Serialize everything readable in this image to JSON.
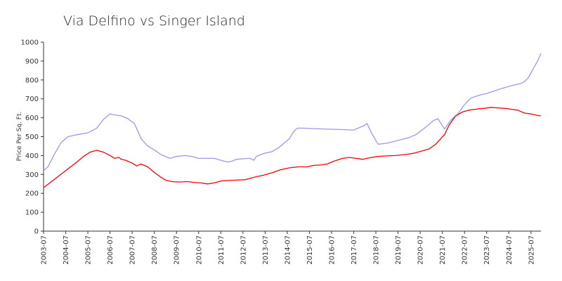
{
  "chart_data": {
    "type": "line",
    "title": "Via Delfino vs Singer Island",
    "xlabel": "",
    "ylabel": "Price Per Sq. Ft.",
    "ylim": [
      0,
      1000
    ],
    "yticks": [
      0,
      100,
      200,
      300,
      400,
      500,
      600,
      700,
      800,
      900,
      1000
    ],
    "xlim": [
      2003.5,
      2025.95
    ],
    "xticks": [
      "2003-07",
      "2004-07",
      "2005-07",
      "2006-07",
      "2007-07",
      "2008-07",
      "2009-07",
      "2010-07",
      "2011-07",
      "2012-07",
      "2013-07",
      "2014-07",
      "2015-07",
      "2016-07",
      "2017-07",
      "2018-07",
      "2019-07",
      "2020-07",
      "2021-07",
      "2022-07",
      "2023-07",
      "2024-07",
      "2025-07"
    ],
    "grid": false,
    "series": [
      {
        "color": "#9999ee",
        "x": [
          2003.5,
          2003.7,
          2004.0,
          2004.3,
          2004.6,
          2005.0,
          2005.5,
          2005.9,
          2006.2,
          2006.5,
          2006.7,
          2007.0,
          2007.3,
          2007.6,
          2007.9,
          2008.2,
          2008.5,
          2008.8,
          2009.2,
          2009.5,
          2009.9,
          2010.2,
          2010.5,
          2010.8,
          2011.2,
          2011.5,
          2011.8,
          2012.0,
          2012.2,
          2012.5,
          2012.8,
          2013.0,
          2013.1,
          2013.2,
          2013.5,
          2013.8,
          2014.1,
          2014.3,
          2014.6,
          2014.75,
          2014.9,
          2015.0,
          2015.2,
          2015.5,
          2016.0,
          2016.5,
          2017.0,
          2017.5,
          2017.8,
          2018.0,
          2018.1,
          2018.3,
          2018.6,
          2019.0,
          2019.5,
          2020.0,
          2020.3,
          2020.7,
          2021.1,
          2021.3,
          2021.6,
          2021.9,
          2022.2,
          2022.5,
          2022.8,
          2023.2,
          2023.5,
          2023.8,
          2024.1,
          2024.4,
          2024.7,
          2025.0,
          2025.2,
          2025.4,
          2025.6,
          2025.8,
          2025.95
        ],
        "y": [
          320,
          340,
          410,
          470,
          500,
          510,
          520,
          545,
          590,
          620,
          615,
          610,
          595,
          570,
          490,
          450,
          430,
          405,
          385,
          395,
          400,
          395,
          385,
          385,
          385,
          375,
          365,
          370,
          380,
          383,
          385,
          375,
          395,
          400,
          413,
          420,
          440,
          460,
          490,
          520,
          540,
          545,
          545,
          543,
          541,
          539,
          537,
          535,
          550,
          560,
          570,
          520,
          460,
          465,
          480,
          495,
          510,
          545,
          585,
          595,
          540,
          590,
          620,
          670,
          705,
          720,
          728,
          740,
          752,
          762,
          772,
          780,
          790,
          815,
          860,
          900,
          940
        ]
      },
      {
        "color": "#ff0000",
        "x": [
          2003.5,
          2004.0,
          2004.5,
          2005.0,
          2005.3,
          2005.6,
          2005.9,
          2006.2,
          2006.5,
          2006.7,
          2006.9,
          2007.0,
          2007.2,
          2007.5,
          2007.7,
          2007.9,
          2008.0,
          2008.2,
          2008.5,
          2008.8,
          2009.0,
          2009.3,
          2009.6,
          2010.0,
          2010.3,
          2010.6,
          2010.9,
          2011.2,
          2011.5,
          2011.8,
          2012.2,
          2012.6,
          2013.0,
          2013.4,
          2013.8,
          2014.2,
          2014.6,
          2015.0,
          2015.4,
          2015.7,
          2016.0,
          2016.3,
          2016.6,
          2017.0,
          2017.3,
          2017.6,
          2017.9,
          2018.1,
          2018.3,
          2018.6,
          2019.0,
          2019.4,
          2019.8,
          2020.2,
          2020.6,
          2020.9,
          2021.2,
          2021.4,
          2021.5,
          2021.6,
          2021.8,
          2022.1,
          2022.4,
          2022.7,
          2023.0,
          2023.2,
          2023.4,
          2023.7,
          2024.0,
          2024.3,
          2024.6,
          2024.9,
          2025.2,
          2025.5,
          2025.8,
          2025.95
        ],
        "y": [
          230,
          275,
          320,
          365,
          395,
          418,
          428,
          418,
          400,
          385,
          390,
          380,
          375,
          360,
          345,
          355,
          350,
          340,
          310,
          285,
          270,
          262,
          260,
          262,
          258,
          255,
          250,
          255,
          265,
          268,
          270,
          272,
          285,
          295,
          308,
          325,
          335,
          340,
          340,
          348,
          350,
          355,
          370,
          385,
          390,
          385,
          380,
          385,
          390,
          395,
          398,
          400,
          405,
          412,
          425,
          435,
          460,
          485,
          500,
          510,
          560,
          610,
          630,
          640,
          645,
          648,
          650,
          655,
          652,
          650,
          645,
          640,
          625,
          620,
          612,
          610
        ]
      }
    ]
  }
}
